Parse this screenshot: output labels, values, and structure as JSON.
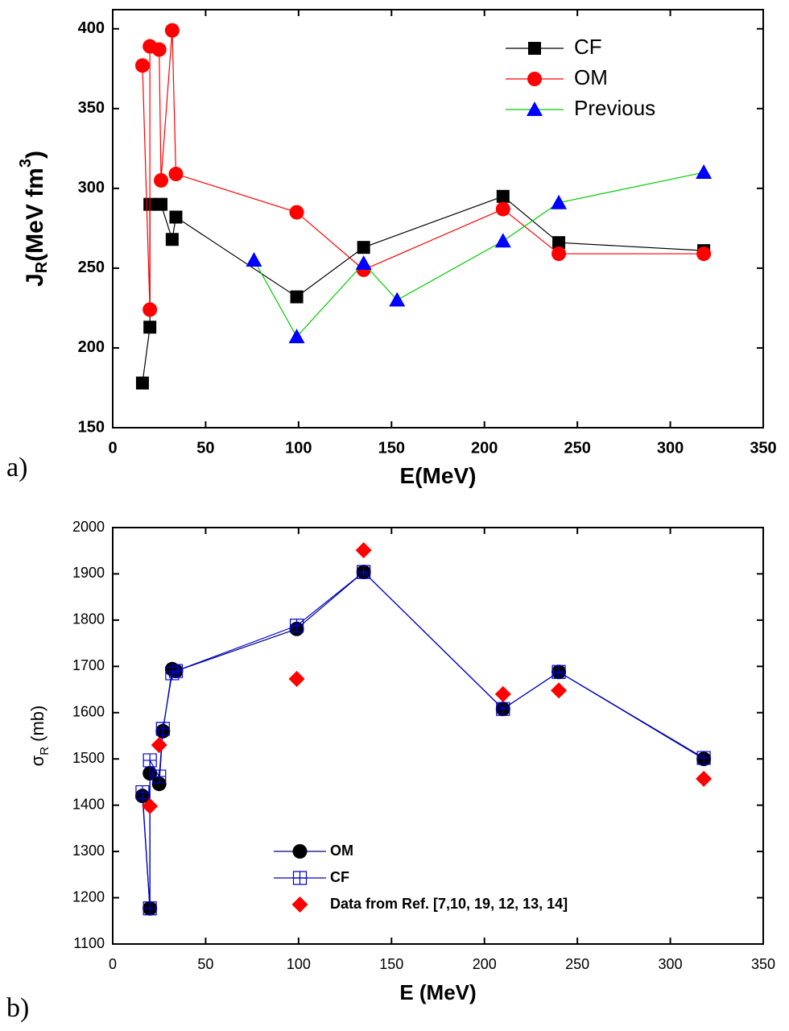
{
  "chart_data": [
    {
      "type": "scatter",
      "panel": "a)",
      "xlabel": [
        "E(MeV)"
      ],
      "ylabel": [
        "J",
        "R",
        "(MeV fm",
        "3",
        ")"
      ],
      "xlim": [
        0,
        350
      ],
      "xticks": [
        0,
        50,
        100,
        150,
        200,
        250,
        300,
        350
      ],
      "ylim": [
        150,
        412
      ],
      "yticks": [
        150,
        200,
        250,
        300,
        350,
        400
      ],
      "legend": "upper right",
      "series": [
        {
          "name": "CF",
          "marker": "square",
          "color": "#000000",
          "line_color": "#000000",
          "x": [
            16,
            20,
            20,
            26,
            32,
            34,
            99,
            135,
            210,
            240,
            318
          ],
          "values": [
            178,
            213,
            290,
            290,
            268,
            282,
            232,
            263,
            295,
            266,
            261
          ]
        },
        {
          "name": "OM",
          "marker": "circle",
          "color": "#ff0000",
          "line_color": "#ff0000",
          "x": [
            16,
            20,
            20,
            25,
            26,
            32,
            34,
            99,
            135,
            210,
            240,
            318
          ],
          "values": [
            377,
            224,
            389,
            387,
            305,
            399,
            309,
            285,
            249,
            287,
            259,
            259
          ]
        },
        {
          "name": "Previous",
          "marker": "triangle",
          "color": "#0000ff",
          "line_color": "#00cc00",
          "x": [
            76,
            99,
            135,
            153,
            210,
            240,
            318
          ],
          "values": [
            255,
            207,
            253,
            230,
            267,
            291,
            310
          ]
        }
      ]
    },
    {
      "type": "scatter",
      "panel": "b)",
      "xlabel": [
        "E (MeV)"
      ],
      "ylabel": [
        "σ",
        "R",
        " (mb)"
      ],
      "xlim": [
        0,
        350
      ],
      "xticks": [
        0,
        50,
        100,
        150,
        200,
        250,
        300,
        350
      ],
      "ylim": [
        1100,
        2000
      ],
      "yticks": [
        1100,
        1200,
        1300,
        1400,
        1500,
        1600,
        1700,
        1800,
        1900,
        2000
      ],
      "legend": "lower center",
      "series": [
        {
          "name": "OM",
          "marker": "circle",
          "color": "#000000",
          "line_color": "#000080",
          "x": [
            16,
            20,
            20,
            25,
            27,
            32,
            34,
            99,
            135,
            210,
            240,
            318
          ],
          "values": [
            1420,
            1177,
            1469,
            1446,
            1560,
            1694,
            1690,
            1781,
            1904,
            1608,
            1688,
            1500
          ]
        },
        {
          "name": "CF",
          "marker": "crosssquare",
          "color": "#0000cc",
          "line_color": "#0000cc",
          "x": [
            16,
            20,
            20,
            25,
            27,
            32,
            34,
            99,
            135,
            210,
            240,
            318
          ],
          "values": [
            1428,
            1177,
            1497,
            1462,
            1565,
            1685,
            1690,
            1788,
            1904,
            1608,
            1688,
            1502
          ]
        },
        {
          "name": "Data from Ref. [7,10, 19, 12, 13, 14]",
          "marker": "diamond",
          "color": "#ff0000",
          "line_color": null,
          "x": [
            20,
            25,
            99,
            135,
            210,
            240,
            318
          ],
          "values": [
            1398,
            1530,
            1673,
            1951,
            1640,
            1648,
            1457
          ]
        }
      ]
    }
  ]
}
